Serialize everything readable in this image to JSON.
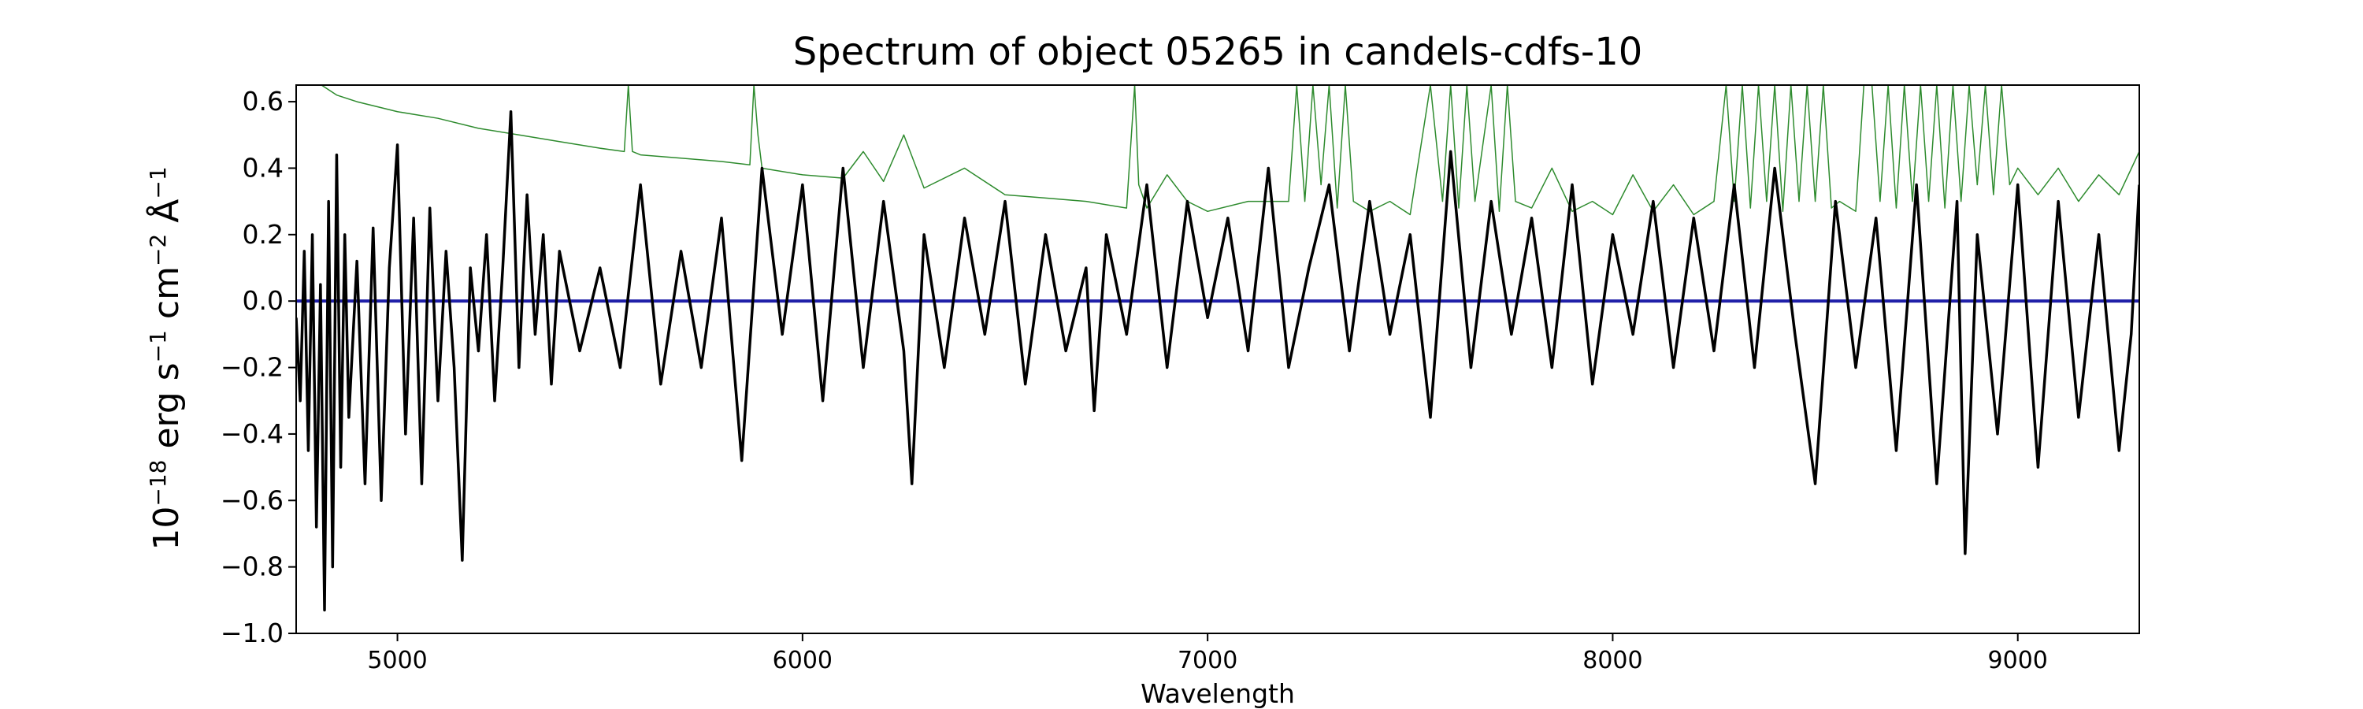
{
  "chart_data": {
    "type": "line",
    "title": "Spectrum of object 05265 in candels-cdfs-10",
    "xlabel": "Wavelength",
    "ylabel": {
      "base": "10",
      "exp1": "−18",
      "unit1": " erg s",
      "exp2": "−1",
      "unit2": " cm",
      "exp3": "−2",
      "unit3": " Å",
      "exp4": "−1"
    },
    "xlim": [
      4750,
      9300
    ],
    "ylim": [
      -1.0,
      0.65
    ],
    "x_ticks": [
      5000,
      6000,
      7000,
      8000,
      9000
    ],
    "x_tick_labels": [
      "5000",
      "6000",
      "7000",
      "8000",
      "9000"
    ],
    "y_ticks": [
      -1.0,
      -0.8,
      -0.6,
      -0.4,
      -0.2,
      0.0,
      0.2,
      0.4,
      0.6
    ],
    "y_tick_labels": [
      "−1.0",
      "−0.8",
      "−0.6",
      "−0.4",
      "−0.2",
      "0.0",
      "0.2",
      "0.4",
      "0.6"
    ],
    "grid": false,
    "colors": {
      "flux": "#000000",
      "error": "#2e8b2e",
      "zero": "#1f1fa8"
    },
    "series": [
      {
        "role": "flux",
        "x": [
          4750,
          4760,
          4770,
          4780,
          4790,
          4800,
          4810,
          4820,
          4830,
          4840,
          4850,
          4860,
          4870,
          4880,
          4900,
          4920,
          4940,
          4960,
          4980,
          5000,
          5020,
          5040,
          5060,
          5080,
          5100,
          5120,
          5140,
          5160,
          5180,
          5200,
          5220,
          5240,
          5260,
          5280,
          5300,
          5320,
          5340,
          5360,
          5380,
          5400,
          5450,
          5500,
          5550,
          5600,
          5650,
          5700,
          5750,
          5800,
          5850,
          5900,
          5950,
          6000,
          6050,
          6100,
          6150,
          6200,
          6250,
          6270,
          6300,
          6350,
          6400,
          6450,
          6500,
          6550,
          6600,
          6650,
          6700,
          6720,
          6750,
          6800,
          6850,
          6900,
          6950,
          7000,
          7050,
          7100,
          7150,
          7200,
          7250,
          7300,
          7350,
          7400,
          7450,
          7500,
          7550,
          7600,
          7650,
          7700,
          7750,
          7800,
          7850,
          7900,
          7950,
          8000,
          8050,
          8100,
          8150,
          8200,
          8250,
          8300,
          8350,
          8400,
          8450,
          8500,
          8550,
          8600,
          8650,
          8700,
          8750,
          8800,
          8850,
          8870,
          8900,
          8950,
          9000,
          9050,
          9100,
          9150,
          9200,
          9250,
          9280,
          9300
        ],
        "y": [
          -0.05,
          -0.3,
          0.15,
          -0.45,
          0.2,
          -0.68,
          0.05,
          -0.93,
          0.3,
          -0.8,
          0.44,
          -0.5,
          0.2,
          -0.35,
          0.12,
          -0.55,
          0.22,
          -0.6,
          0.1,
          0.47,
          -0.4,
          0.25,
          -0.55,
          0.28,
          -0.3,
          0.15,
          -0.2,
          -0.78,
          0.1,
          -0.15,
          0.2,
          -0.3,
          0.1,
          0.57,
          -0.2,
          0.32,
          -0.1,
          0.2,
          -0.25,
          0.15,
          -0.15,
          0.1,
          -0.2,
          0.35,
          -0.25,
          0.15,
          -0.2,
          0.25,
          -0.48,
          0.4,
          -0.1,
          0.35,
          -0.3,
          0.4,
          -0.2,
          0.3,
          -0.15,
          -0.55,
          0.2,
          -0.2,
          0.25,
          -0.1,
          0.3,
          -0.25,
          0.2,
          -0.15,
          0.1,
          -0.33,
          0.2,
          -0.1,
          0.35,
          -0.2,
          0.3,
          -0.05,
          0.25,
          -0.15,
          0.4,
          -0.2,
          0.1,
          0.35,
          -0.15,
          0.3,
          -0.1,
          0.2,
          -0.35,
          0.45,
          -0.2,
          0.3,
          -0.1,
          0.25,
          -0.2,
          0.35,
          -0.25,
          0.2,
          -0.1,
          0.3,
          -0.2,
          0.25,
          -0.15,
          0.35,
          -0.2,
          0.4,
          -0.1,
          -0.55,
          0.3,
          -0.2,
          0.25,
          -0.45,
          0.35,
          -0.55,
          0.3,
          -0.76,
          0.2,
          -0.4,
          0.35,
          -0.5,
          0.3,
          -0.35,
          0.2,
          -0.45,
          -0.1,
          0.35
        ]
      },
      {
        "role": "error",
        "x": [
          4750,
          4800,
          4850,
          4900,
          5000,
          5100,
          5200,
          5300,
          5400,
          5500,
          5560,
          5570,
          5580,
          5600,
          5700,
          5800,
          5870,
          5880,
          5890,
          5900,
          6000,
          6100,
          6150,
          6200,
          6250,
          6300,
          6400,
          6500,
          6600,
          6700,
          6800,
          6820,
          6830,
          6850,
          6900,
          6950,
          7000,
          7100,
          7200,
          7220,
          7240,
          7260,
          7280,
          7300,
          7320,
          7340,
          7360,
          7400,
          7450,
          7500,
          7550,
          7580,
          7600,
          7620,
          7640,
          7660,
          7700,
          7720,
          7740,
          7760,
          7800,
          7850,
          7900,
          7950,
          8000,
          8050,
          8100,
          8150,
          8200,
          8250,
          8280,
          8300,
          8320,
          8340,
          8360,
          8380,
          8400,
          8420,
          8440,
          8460,
          8480,
          8500,
          8520,
          8540,
          8560,
          8600,
          8620,
          8640,
          8660,
          8680,
          8700,
          8720,
          8740,
          8760,
          8780,
          8800,
          8820,
          8840,
          8860,
          8880,
          8900,
          8920,
          8940,
          8960,
          8980,
          9000,
          9050,
          9100,
          9150,
          9200,
          9250,
          9300
        ],
        "y": [
          0.7,
          0.66,
          0.62,
          0.6,
          0.57,
          0.55,
          0.52,
          0.5,
          0.48,
          0.46,
          0.45,
          0.65,
          0.45,
          0.44,
          0.43,
          0.42,
          0.41,
          0.65,
          0.5,
          0.4,
          0.38,
          0.37,
          0.45,
          0.36,
          0.5,
          0.34,
          0.4,
          0.32,
          0.31,
          0.3,
          0.28,
          0.65,
          0.35,
          0.28,
          0.38,
          0.3,
          0.27,
          0.3,
          0.3,
          0.65,
          0.3,
          0.65,
          0.35,
          0.65,
          0.28,
          0.65,
          0.3,
          0.27,
          0.3,
          0.26,
          0.65,
          0.3,
          0.65,
          0.28,
          0.65,
          0.3,
          0.65,
          0.27,
          0.65,
          0.3,
          0.28,
          0.4,
          0.27,
          0.3,
          0.26,
          0.38,
          0.27,
          0.35,
          0.26,
          0.3,
          0.65,
          0.3,
          0.65,
          0.28,
          0.65,
          0.3,
          0.65,
          0.27,
          0.65,
          0.3,
          0.65,
          0.3,
          0.65,
          0.28,
          0.3,
          0.27,
          0.65,
          0.65,
          0.3,
          0.65,
          0.28,
          0.65,
          0.3,
          0.65,
          0.3,
          0.65,
          0.28,
          0.65,
          0.3,
          0.65,
          0.35,
          0.65,
          0.32,
          0.65,
          0.35,
          0.4,
          0.32,
          0.4,
          0.3,
          0.38,
          0.32,
          0.45
        ]
      },
      {
        "role": "zero",
        "x": [
          4750,
          9300
        ],
        "y": [
          0.0,
          0.0
        ]
      }
    ]
  }
}
